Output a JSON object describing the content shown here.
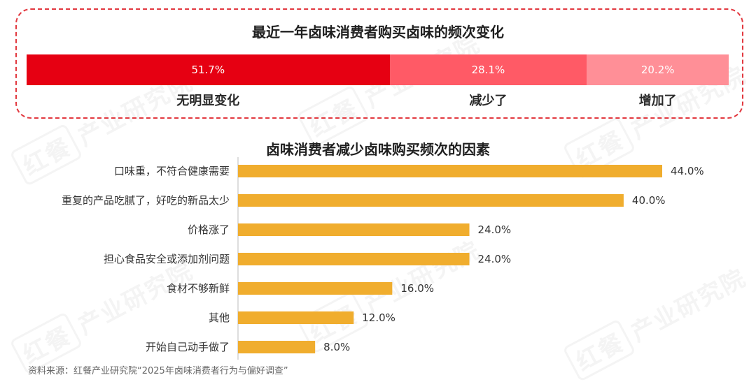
{
  "watermark": {
    "seal": "红餐",
    "text": "产业研究院"
  },
  "chart_data": [
    {
      "type": "bar",
      "orientation": "stacked-horizontal-100%",
      "title": "最近一年卤味消费者购买卤味的频次变化",
      "categories": [
        "无明显变化",
        "减少了",
        "增加了"
      ],
      "values": [
        51.7,
        28.1,
        20.2
      ],
      "value_labels": [
        "51.7%",
        "28.1%",
        "20.2%"
      ],
      "colors": [
        "#e60012",
        "#ff5a66",
        "#ff8f97"
      ]
    },
    {
      "type": "bar",
      "orientation": "horizontal",
      "title": "卤味消费者减少卤味购买频次的因素",
      "categories": [
        "口味重，不符合健康需要",
        "重复的产品吃腻了，好吃的新品太少",
        "价格涨了",
        "担心食品安全或添加剂问题",
        "食材不够新鲜",
        "其他",
        "开始自己动手做了"
      ],
      "values": [
        44.0,
        40.0,
        24.0,
        24.0,
        16.0,
        12.0,
        8.0
      ],
      "value_labels": [
        "44.0%",
        "40.0%",
        "24.0%",
        "24.0%",
        "16.0%",
        "12.0%",
        "8.0%"
      ],
      "xlim": [
        0,
        44
      ],
      "grid": false,
      "bar_color": "#f0ad2e"
    }
  ],
  "source": "资料来源：红餐产业研究院“2025年卤味消费者行为与偏好调查”"
}
